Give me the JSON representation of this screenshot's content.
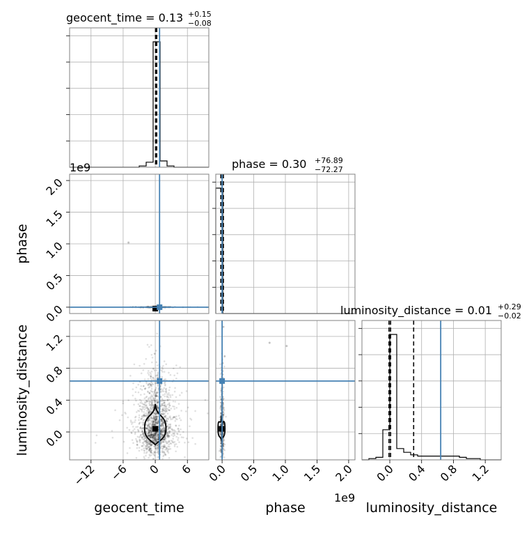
{
  "chart_data": {
    "type": "corner",
    "parameters": [
      "geocent_time",
      "phase",
      "luminosity_distance"
    ],
    "titles": [
      {
        "param": "geocent_time",
        "median": "0.13",
        "plus": "+0.15",
        "minus": "−0.08"
      },
      {
        "param": "phase",
        "median": "0.30",
        "plus": "+76.89",
        "minus": "−72.27"
      },
      {
        "param": "luminosity_distance",
        "median": "0.01",
        "plus": "+0.29",
        "minus": "−0.02"
      }
    ],
    "axis_labels": {
      "x": [
        "geocent_time",
        "phase",
        "luminosity_distance"
      ],
      "y": [
        "phase",
        "luminosity_distance"
      ]
    },
    "geocent_time": {
      "range": [
        -16,
        10
      ],
      "ticks": [
        "−12",
        "−6",
        "0",
        "6"
      ],
      "tick_values": [
        -12,
        -6,
        0,
        6
      ],
      "truth": 0.8,
      "quantiles": [
        0.05,
        0.13,
        0.28
      ]
    },
    "phase": {
      "range": [
        -0.1,
        2.1
      ],
      "scale": "1e9",
      "ticks": [
        "0.0",
        "0.5",
        "1.0",
        "1.5",
        "2.0"
      ],
      "tick_values": [
        0.0,
        0.5,
        1.0,
        1.5,
        2.0
      ],
      "truth": 0.0,
      "quantiles": [
        -0.02,
        0.0,
        0.02
      ]
    },
    "luminosity_distance": {
      "range": [
        -0.35,
        1.4
      ],
      "ticks": [
        "0.0",
        "0.4",
        "0.8",
        "1.2"
      ],
      "tick_values": [
        0.0,
        0.4,
        0.8,
        1.2
      ],
      "truth": 0.64,
      "quantiles": [
        -0.01,
        0.01,
        0.3
      ]
    },
    "hist_geocent_time": {
      "edges": [
        -16,
        -14.7,
        -13.4,
        -12.1,
        -10.8,
        -9.5,
        -8.2,
        -6.9,
        -5.6,
        -4.3,
        -3.0,
        -1.7,
        -0.4,
        0.9,
        2.2,
        3.5,
        4.8,
        6.1,
        7.4,
        8.7,
        10
      ],
      "counts": [
        0,
        0,
        0,
        0,
        0,
        0,
        0,
        0,
        0,
        0,
        1,
        4,
        100,
        5,
        1,
        0,
        0,
        0,
        0,
        0
      ]
    },
    "hist_phase": {
      "edges": [
        -0.1,
        0.01,
        0.12,
        0.23,
        0.34,
        0.45,
        0.56,
        0.67,
        0.78,
        0.89,
        1.0,
        1.11,
        1.22,
        1.33,
        1.44,
        1.55,
        1.66,
        1.77,
        1.88,
        1.99,
        2.1
      ],
      "counts": [
        100,
        0,
        0,
        0,
        0,
        0,
        0,
        0,
        0,
        0,
        0,
        0,
        0,
        0,
        0,
        0,
        0,
        0,
        0,
        0
      ]
    },
    "hist_luminosity_distance": {
      "edges": [
        -0.35,
        -0.2625,
        -0.175,
        -0.0875,
        0.0,
        0.0875,
        0.175,
        0.2625,
        0.35,
        0.4375,
        0.525,
        0.6125,
        0.7,
        0.7875,
        0.875,
        0.9625,
        1.05,
        1.1375,
        1.225,
        1.3125,
        1.4
      ],
      "counts": [
        0,
        1,
        2,
        24,
        100,
        9,
        6,
        4,
        3,
        3,
        3,
        3,
        3,
        3,
        2,
        1,
        1,
        0,
        0,
        0
      ]
    },
    "contour_gt_ld": {
      "center": [
        0.0,
        0.04
      ],
      "xhalf": [
        1.2,
        2.0
      ],
      "y": [
        -0.16,
        0.35
      ]
    },
    "contour_ph_ld": {
      "center": [
        -0.01,
        0.04
      ],
      "xhalf": [
        0.03,
        0.055
      ],
      "y": [
        -0.1,
        0.2
      ]
    },
    "outliers_gt_ph": [
      {
        "x": -5.0,
        "y": 1.02
      }
    ],
    "outliers_ph_ld": [
      {
        "x": 0.02,
        "y": 1.32
      },
      {
        "x": 0.04,
        "y": 0.95
      },
      {
        "x": 0.75,
        "y": 1.12
      },
      {
        "x": 1.02,
        "y": 1.08
      },
      {
        "x": 0.0,
        "y": 0.86
      }
    ]
  }
}
